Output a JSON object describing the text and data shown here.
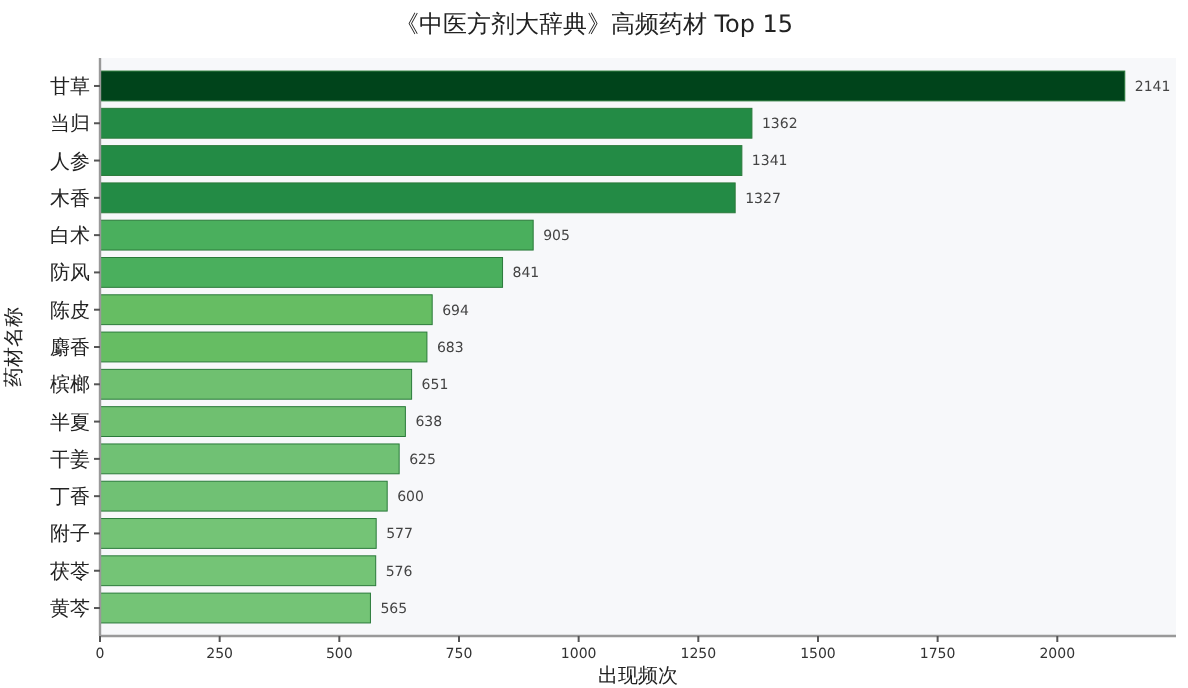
{
  "chart_data": {
    "type": "bar",
    "orientation": "horizontal",
    "title": "《中医方剂大辞典》高频药材 Top 15",
    "xlabel": "出现频次",
    "ylabel": "药材名称",
    "categories": [
      "甘草",
      "当归",
      "人参",
      "木香",
      "白术",
      "防风",
      "陈皮",
      "麝香",
      "槟榔",
      "半夏",
      "干姜",
      "丁香",
      "附子",
      "茯苓",
      "黄芩"
    ],
    "values": [
      2141,
      1362,
      1341,
      1327,
      905,
      841,
      694,
      683,
      651,
      638,
      625,
      600,
      577,
      576,
      565
    ],
    "colors": [
      "#00441b",
      "#238b45",
      "#238b45",
      "#238b45",
      "#4aaf5d",
      "#4aaf5d",
      "#66bd63",
      "#66bd63",
      "#6fc070",
      "#6fc070",
      "#70c174",
      "#70c174",
      "#74c476",
      "#74c476",
      "#74c476"
    ],
    "xlim": [
      0,
      2248
    ],
    "xticks": [
      0,
      250,
      500,
      750,
      1000,
      1250,
      1500,
      1750,
      2000
    ],
    "data_labels": true,
    "grid": false
  }
}
